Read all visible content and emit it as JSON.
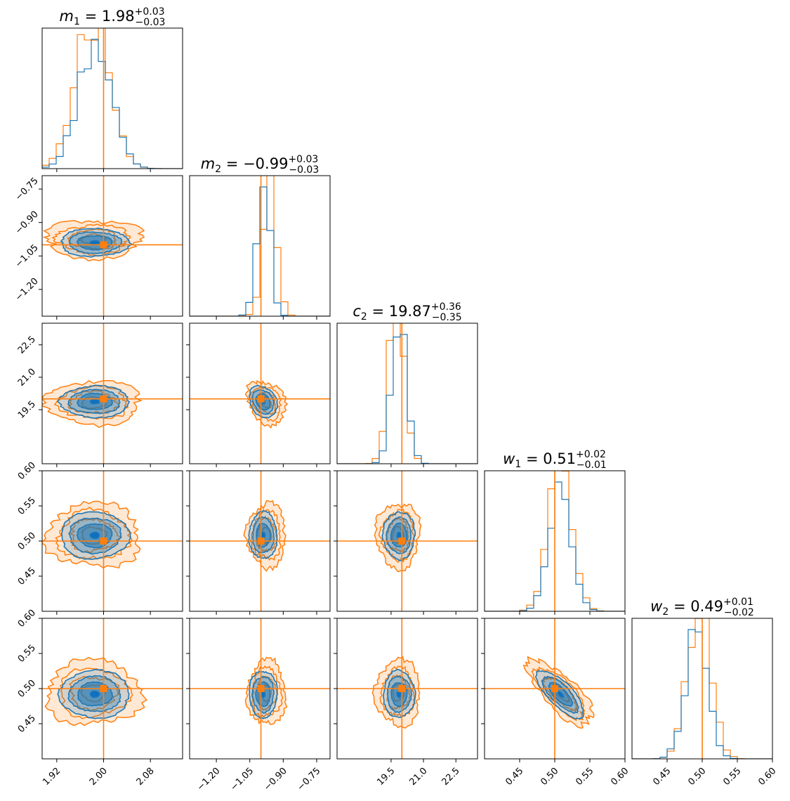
{
  "chart_data": {
    "type": "corner",
    "parameters": [
      {
        "key": "m1",
        "symbol": "m",
        "subscript": "1",
        "median": "1.98",
        "plus": "+0.03",
        "minus": "−0.03",
        "truth": 2.0,
        "range": [
          1.895,
          2.135
        ],
        "ticks": [
          1.92,
          2.0,
          2.08
        ],
        "tick_labels": [
          "1.92",
          "2.00",
          "2.08"
        ],
        "center": 1.985,
        "sigma": 0.028,
        "truth_hist_shift": -0.004
      },
      {
        "key": "m2",
        "symbol": "m",
        "subscript": "2",
        "median": "−0.99",
        "plus": "+0.03",
        "minus": "−0.03",
        "truth": -1.0,
        "range": [
          -1.32,
          -0.69
        ],
        "ticks": [
          -1.2,
          -1.05,
          -0.9,
          -0.75
        ],
        "tick_labels": [
          "−1.20",
          "−1.05",
          "−0.90",
          "−0.75"
        ],
        "center": -0.99,
        "sigma": 0.03,
        "truth_hist_shift": 0.03
      },
      {
        "key": "c2",
        "symbol": "c",
        "subscript": "2",
        "median": "19.87",
        "plus": "+0.36",
        "minus": "−0.35",
        "truth": 20.0,
        "range": [
          17.0,
          23.5
        ],
        "ticks": [
          19.5,
          21.0,
          22.5
        ],
        "tick_labels": [
          "19.5",
          "21.0",
          "22.5"
        ],
        "center": 19.87,
        "sigma": 0.35,
        "truth_hist_shift": -0.1
      },
      {
        "key": "w1",
        "symbol": "w",
        "subscript": "1",
        "median": "0.51",
        "plus": "+0.02",
        "minus": "−0.01",
        "truth": 0.5,
        "range": [
          0.4,
          0.6
        ],
        "ticks": [
          0.45,
          0.5,
          0.55,
          0.6
        ],
        "tick_labels": [
          "0.45",
          "0.50",
          "0.55",
          "0.60"
        ],
        "center": 0.508,
        "sigma": 0.016,
        "truth_hist_shift": 0.0
      },
      {
        "key": "w2",
        "symbol": "w",
        "subscript": "2",
        "median": "0.49",
        "plus": "+0.01",
        "minus": "−0.02",
        "truth": 0.5,
        "range": [
          0.4,
          0.6
        ],
        "ticks": [
          0.45,
          0.5,
          0.55,
          0.6
        ],
        "tick_labels": [
          "0.45",
          "0.50",
          "0.55",
          "0.60"
        ],
        "center": 0.492,
        "sigma": 0.016,
        "truth_hist_shift": 0.004
      }
    ],
    "correlations": {
      "w1_w2": -0.75,
      "m2_c2": -0.25
    },
    "colors": {
      "posterior": "#1f77b4",
      "posterior_fill": "#0a6fc4",
      "comparison": "#ff7f0e",
      "truth": "#ff7f0e"
    },
    "levels_sigma": [
      0.5,
      1.0,
      1.5,
      2.0
    ]
  }
}
